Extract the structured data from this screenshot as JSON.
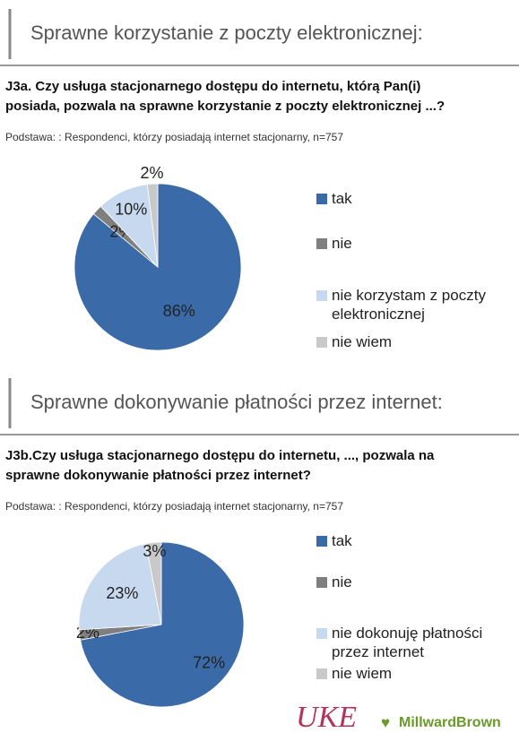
{
  "chart_data": [
    {
      "type": "pie",
      "title": "Sprawne korzystanie z poczty elektronicznej:",
      "subtitle": "J3a. Czy usługa stacjonarnego dostępu do internetu, którą Pan(i)\nposiada, pozwala na sprawne korzystanie z poczty elektronicznej ...?",
      "note": "Podstawa: : Respondenci, którzy posiadają internet stacjonarny, n=757",
      "categories": [
        "tak",
        "nie",
        "nie korzystam z poczty\nelektronicznej",
        "nie wiem"
      ],
      "values": [
        86,
        2,
        10,
        2
      ],
      "value_labels": [
        "86%",
        "2%",
        "10%",
        "2%"
      ],
      "colors": [
        "#3a6aa8",
        "#7f7f7f",
        "#c6d9ee",
        "#c9c9c9"
      ]
    },
    {
      "type": "pie",
      "title": "Sprawne dokonywanie płatności przez internet:",
      "subtitle": "J3b.Czy usługa stacjonarnego dostępu do internetu, ..., pozwala na\nsprawne dokonywanie płatności przez internet?",
      "note": "Podstawa: : Respondenci, którzy posiadają internet stacjonarny, n=757",
      "categories": [
        "tak",
        "nie",
        "nie dokonuję płatności\nprzez internet",
        "nie wiem"
      ],
      "values": [
        72,
        2,
        23,
        3
      ],
      "value_labels": [
        "72%",
        "2%",
        "23%",
        "3%"
      ],
      "colors": [
        "#3a6aa8",
        "#7f7f7f",
        "#c6d9ee",
        "#c9c9c9"
      ]
    }
  ],
  "footer": {
    "logos": [
      "UKE",
      "MillwardBrown"
    ]
  }
}
